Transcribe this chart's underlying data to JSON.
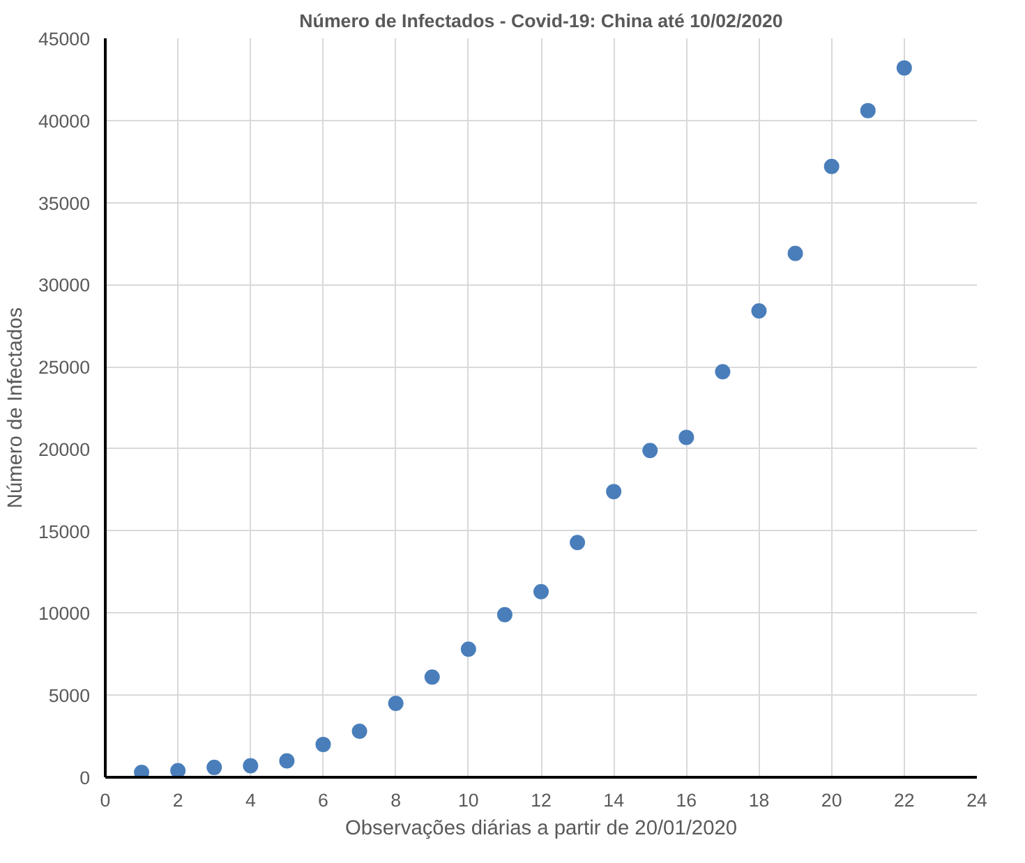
{
  "chart_data": {
    "type": "scatter",
    "title": "Número de Infectados - Covid-19: China até 10/02/2020",
    "xlabel": "Observações diárias a partir de 20/01/2020",
    "ylabel": "Número de Infectados",
    "x": [
      1,
      2,
      3,
      4,
      5,
      6,
      7,
      8,
      9,
      10,
      11,
      12,
      13,
      14,
      15,
      16,
      17,
      18,
      19,
      20,
      21,
      22
    ],
    "series": [
      {
        "color": "#4a7ebb",
        "values": [
          300,
          400,
          600,
          700,
          1000,
          2000,
          2800,
          4500,
          6100,
          7800,
          9900,
          11300,
          14300,
          17400,
          19900,
          20700,
          24700,
          28400,
          31900,
          37200,
          40600,
          43200
        ]
      }
    ],
    "xlim": [
      0,
      24
    ],
    "xticks": [
      0,
      2,
      4,
      6,
      8,
      10,
      12,
      14,
      16,
      18,
      20,
      22,
      24
    ],
    "ylim": [
      0,
      45000
    ],
    "yticks": [
      0,
      5000,
      10000,
      15000,
      20000,
      25000,
      30000,
      35000,
      40000,
      45000
    ],
    "grid": true,
    "marker": "circle"
  }
}
